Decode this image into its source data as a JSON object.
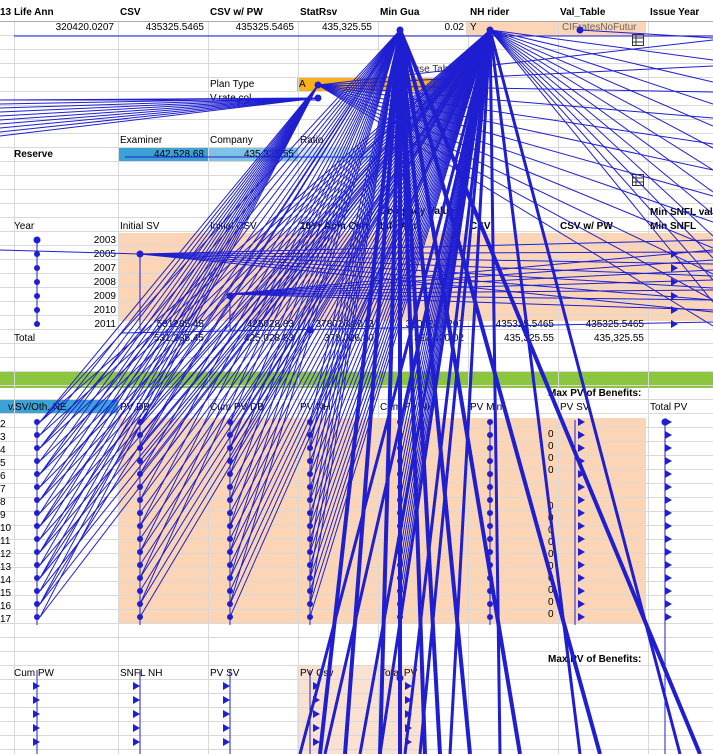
{
  "header": {
    "cols": [
      "13",
      "Life Ann",
      "CSV",
      "CSV w/ PW",
      "StatRsv",
      "Min Gua",
      "NH rider",
      "Val_Table",
      "Issue Year"
    ]
  },
  "row1": {
    "life_ann": "320420.0207",
    "csv": "435325.5465",
    "csv_pw": "435325.5465",
    "stat_rsv": "435,325.55",
    "min_gua": "0.02",
    "nh_flag": "Y",
    "val_table": "CIFratesNoFutur"
  },
  "plan": {
    "plan_type_label": "Plan Type",
    "plan_type_value": "A",
    "vrate_label": "V.rate col",
    "note": "(V.W.use Table C)"
  },
  "reserve": {
    "label": "Reserve",
    "examiner_label": "Examiner",
    "company_label": "Company",
    "ratio_label": "Ratio",
    "examiner_value": "442,528.68",
    "company_value": "435,325.55"
  },
  "table1": {
    "group_label": "Company Values",
    "headers": [
      "Year",
      "Initial SV",
      "Initial CSV",
      "10Yr Acm Cert",
      "Life Ann",
      "CSV",
      "CSV w/ PW",
      "Min SNFL val",
      "Min SNFL"
    ],
    "years": [
      "2003",
      "2005",
      "2007",
      "2008",
      "2009",
      "2010",
      "2011"
    ],
    "row2011": [
      "531285.45",
      "425028.83",
      "378026.8013",
      "320420.0207",
      "435325.5465",
      "435325.5465"
    ],
    "total_label": "Total",
    "total": [
      "531,285.45",
      "425,028.83",
      "378,026.80",
      "320,420.02",
      "435,325.55",
      "435,325.55"
    ]
  },
  "table2": {
    "first_header": "v.SV/Oth. NE",
    "headers": [
      "PV DB",
      "Cum PV DB",
      "PV NH",
      "Cum PV NH",
      "PV Min",
      "PV SV",
      "Total PV"
    ],
    "max_pv_label": "Max PV of Benefits:",
    "row_nums": [
      "2",
      "3",
      "4",
      "5",
      "6",
      "7",
      "8",
      "9",
      "10",
      "11",
      "12",
      "13",
      "14",
      "15",
      "16",
      "17"
    ],
    "zeros": [
      "0",
      "0",
      "0",
      "0",
      "0",
      "0",
      "0",
      "0",
      "0",
      "0",
      "0",
      "0",
      "0",
      "0",
      "0",
      "0"
    ]
  },
  "table3": {
    "headers": [
      "Cum PW",
      "SNFL NH",
      "PV SV",
      "PV Csv",
      "Total PV"
    ],
    "max_pv_label": "Max PV of Benefits:"
  },
  "colors": {
    "arrow": "#1f1fd1",
    "peach": "#fbd5b5",
    "orange": "#f7b21b",
    "blue_cell": "#3ba2d6",
    "green_band": "#8cc63f",
    "salmon": "#f7b99a"
  }
}
